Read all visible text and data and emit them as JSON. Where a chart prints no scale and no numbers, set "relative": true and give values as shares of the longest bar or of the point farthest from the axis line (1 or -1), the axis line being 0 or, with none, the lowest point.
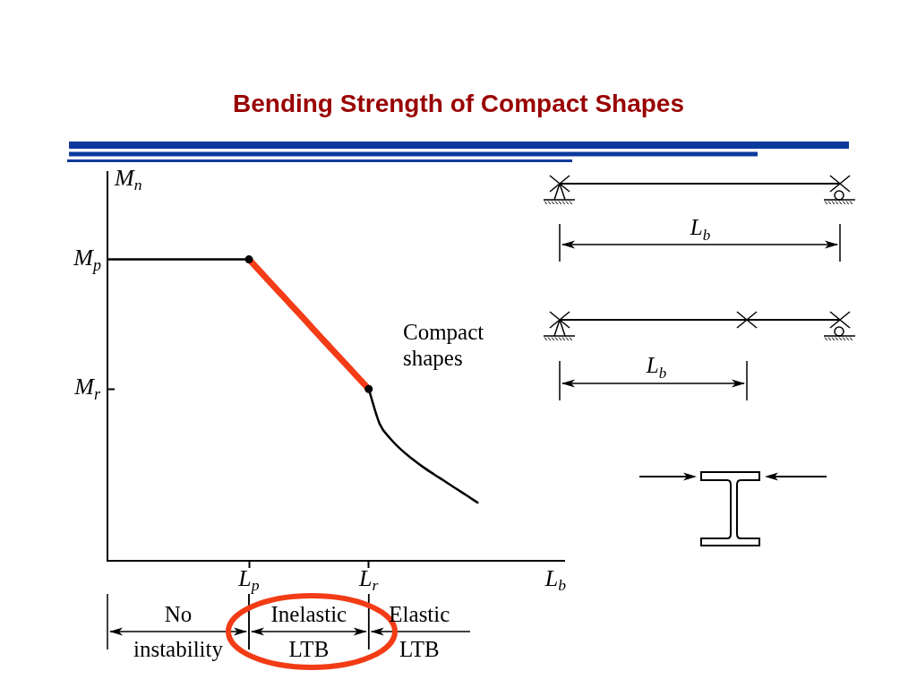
{
  "chart_data": {
    "type": "line",
    "title": "Bending Strength of Compact Shapes",
    "xlabel": "L$_{b}$",
    "ylabel": "M$_{n}$",
    "relative": true,
    "categories": [
      null,
      null,
      null,
      null,
      null,
      null,
      null,
      null,
      null,
      null,
      null,
      null,
      null,
      "L$_{p}$",
      null,
      null,
      null,
      null,
      null,
      null,
      null,
      null,
      null,
      null,
      "L$_{r}$",
      null,
      null,
      null,
      null,
      null,
      null,
      null,
      null,
      null,
      null,
      null,
      null,
      null,
      null,
      null,
      null,
      null,
      null
    ],
    "series": [
      {
        "color": "#000000",
        "values": [
          1,
          1,
          1,
          1,
          1,
          1,
          1,
          1,
          1,
          1,
          1,
          1,
          1,
          1,
          null,
          null,
          null,
          null,
          null,
          null,
          null,
          null,
          null,
          null,
          null,
          null,
          null,
          null,
          null,
          null,
          null,
          null,
          null,
          null,
          null,
          null,
          null,
          null,
          null,
          null,
          null,
          null,
          null
        ]
      },
      {
        "color": "#f43c17",
        "values": [
          null,
          null,
          null,
          null,
          null,
          null,
          null,
          null,
          null,
          null,
          null,
          null,
          null,
          1,
          0.961,
          0.922,
          0.883,
          0.844,
          0.805,
          0.765,
          0.726,
          0.687,
          0.648,
          0.609,
          0.57,
          null,
          null,
          null,
          null,
          null,
          null,
          null,
          null,
          null,
          null,
          null,
          null,
          null,
          null,
          null,
          null,
          null,
          null
        ]
      },
      {
        "color": "#000000",
        "values": [
          null,
          null,
          null,
          null,
          null,
          null,
          null,
          null,
          null,
          null,
          null,
          null,
          null,
          null,
          null,
          null,
          null,
          null,
          null,
          null,
          null,
          null,
          null,
          null,
          0.57,
          0.455,
          0.405,
          0.368,
          0.338,
          0.311,
          0.287,
          0.264,
          0.24,
          0.217,
          0.193,
          null,
          null,
          null,
          null,
          null,
          null,
          null,
          null
        ]
      },
      {
        "type": "scatter",
        "color": "#000000",
        "values": [
          null,
          null,
          null,
          null,
          null,
          null,
          null,
          null,
          null,
          null,
          null,
          null,
          null,
          1,
          null,
          null,
          null,
          null,
          null,
          null,
          null,
          null,
          null,
          null,
          0.57,
          null,
          null,
          null,
          null,
          null,
          null,
          null,
          null,
          null,
          null,
          null,
          null,
          null,
          null,
          null,
          null,
          null,
          null
        ]
      }
    ],
    "ylim": [
      0,
      1.29
    ],
    "annotations": [
      "M$_{p}$",
      "M$_{r}$",
      "Compact shapes",
      "L$_{b}$",
      "L$_{b}$",
      "No instability",
      "Inelastic LTB",
      "Elastic LTB"
    ]
  }
}
